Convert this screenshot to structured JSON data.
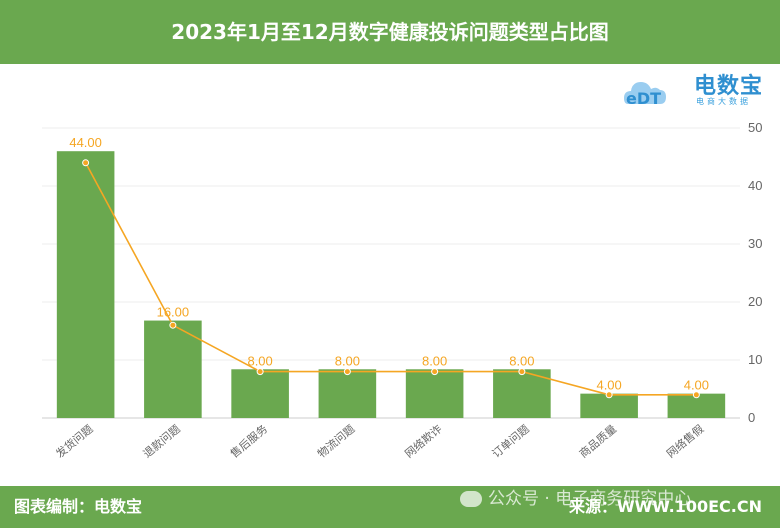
{
  "title": "2023年1月至12月数字健康投诉问题类型占比图",
  "logo": {
    "name": "电数宝",
    "mark": "eDT",
    "subtitle": "电商大数据"
  },
  "unit": "%",
  "footer": {
    "left": "图表编制：电数宝",
    "right": "来源：WWW.100EC.CN",
    "watermark": "公众号 · 电子商务研究中心"
  },
  "colors": {
    "header": "#6aa84f",
    "bar": "#6aa84f",
    "line": "#f5a623",
    "label": "#f5a623",
    "grid": "#eeeeee",
    "axis_text": "#666666"
  },
  "chart_data": {
    "type": "bar",
    "title": "",
    "xlabel": "",
    "ylabel": "%",
    "ylim": [
      0,
      50
    ],
    "yticks": [
      0,
      10,
      20,
      30,
      40,
      50
    ],
    "y_axis_position": "right",
    "grid": true,
    "categories": [
      "发货问题",
      "退款问题",
      "售后服务",
      "物流问题",
      "网络欺诈",
      "订单问题",
      "商品质量",
      "网络售假"
    ],
    "series": [
      {
        "type": "bar",
        "values": [
          46,
          16.8,
          8.4,
          8.4,
          8.4,
          8.4,
          4.2,
          4.2
        ]
      },
      {
        "type": "line",
        "values": [
          44.0,
          16.0,
          8.0,
          8.0,
          8.0,
          8.0,
          4.0,
          4.0
        ],
        "labels": [
          "44.00",
          "16.00",
          "8.00",
          "8.00",
          "8.00",
          "8.00",
          "4.00",
          "4.00"
        ]
      }
    ]
  }
}
